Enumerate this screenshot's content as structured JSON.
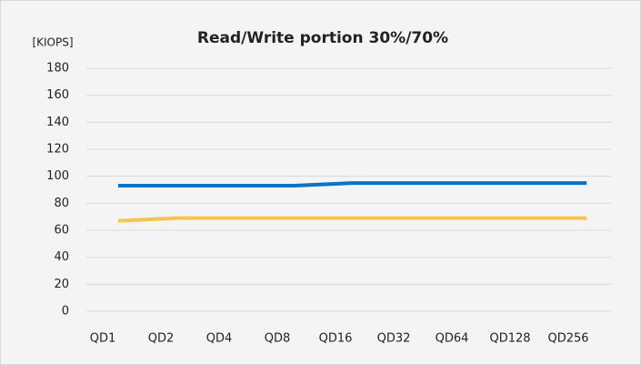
{
  "chart_data": {
    "type": "line",
    "title": "Read/Write portion 30%/70%",
    "y_label": "[KIOPS]",
    "categories": [
      "QD1",
      "QD2",
      "QD4",
      "QD8",
      "QD16",
      "QD32",
      "QD64",
      "QD128",
      "QD256"
    ],
    "series": [
      {
        "color": "#0b72c4",
        "values": [
          93,
          93,
          93,
          93,
          95,
          95,
          95,
          95,
          95
        ]
      },
      {
        "color": "#f5c54e",
        "values": [
          67,
          69,
          69,
          69,
          69,
          69,
          69,
          69,
          69
        ]
      }
    ],
    "ylim": [
      0,
      180
    ],
    "yticks": [
      0,
      20,
      40,
      60,
      80,
      100,
      120,
      140,
      160,
      180
    ],
    "grid": true
  }
}
